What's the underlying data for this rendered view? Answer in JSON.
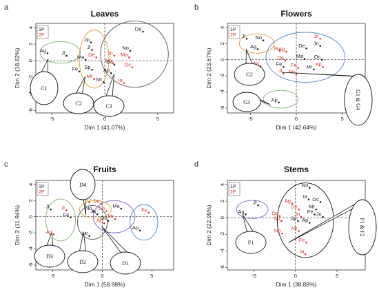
{
  "colors": {
    "group_1P": "#222222",
    "group_2P": "#d23a2a",
    "cluster_green": "#7cb46a",
    "cluster_orange": "#e0a030",
    "cluster_gray": "#555555",
    "cluster_blue": "#4f86c6",
    "cluster_purple": "#8a5cc8",
    "cluster_black": "#111111"
  },
  "chart_data": [
    {
      "letter": "a",
      "type": "scatter",
      "title": "Leaves",
      "xlabel": "Dim 1 (41.07%)",
      "ylabel": "Dim 2 (18.62%)",
      "xlim": [
        -6.5,
        6.5
      ],
      "ylim": [
        -6.3,
        4.5
      ],
      "xticks": [
        -5,
        0,
        5
      ],
      "yticks": [
        -6,
        -4,
        -2,
        0,
        2,
        4
      ],
      "legend": [
        "1P",
        "2P"
      ],
      "legend_position": "top-left",
      "points": [
        {
          "label": "De",
          "x": 3.6,
          "y": 3.5,
          "group": "1P"
        },
        {
          "label": "Ag",
          "x": -5.4,
          "y": 0.9,
          "group": "1P"
        },
        {
          "label": "Jl",
          "x": -3.6,
          "y": 0.6,
          "group": "1P"
        },
        {
          "label": "Jp",
          "x": -1.3,
          "y": 2.2,
          "group": "1P"
        },
        {
          "label": "Jl",
          "x": -1.2,
          "y": 1.3,
          "group": "1P"
        },
        {
          "label": "Jn",
          "x": 0.9,
          "y": 0.6,
          "group": "2P"
        },
        {
          "label": "No",
          "x": 2.4,
          "y": 1.2,
          "group": "1P"
        },
        {
          "label": "De",
          "x": -0.8,
          "y": 0.4,
          "group": "2P"
        },
        {
          "label": "Ma",
          "x": -1.8,
          "y": 0.1,
          "group": "1P"
        },
        {
          "label": "Ma",
          "x": 2.3,
          "y": 0.4,
          "group": "2P"
        },
        {
          "label": "No",
          "x": 0.8,
          "y": -0.3,
          "group": "2P"
        },
        {
          "label": "Oc",
          "x": 0.9,
          "y": -0.5,
          "group": "1P"
        },
        {
          "label": "Oc",
          "x": 2.6,
          "y": -0.8,
          "group": "2P"
        },
        {
          "label": "Fe",
          "x": -2.4,
          "y": -1.3,
          "group": "1P"
        },
        {
          "label": "Sp",
          "x": -1.2,
          "y": -1.1,
          "group": "1P"
        },
        {
          "label": "Ap",
          "x": 0.6,
          "y": -1.5,
          "group": "1P"
        },
        {
          "label": "Mr",
          "x": -1.0,
          "y": -2.2,
          "group": "2P"
        },
        {
          "label": "Mr",
          "x": -0.1,
          "y": -2.6,
          "group": "1P"
        },
        {
          "label": "Ia",
          "x": 1.8,
          "y": -2.7,
          "group": "2P"
        }
      ],
      "clusters": [
        {
          "label": "C1",
          "color": "cluster_green",
          "cx": -4.2,
          "cy": 1.0,
          "rx": 1.9,
          "ry": 1.3
        },
        {
          "label": "C2",
          "color": "cluster_orange",
          "cx": -1.0,
          "cy": 0.2,
          "rx": 1.4,
          "ry": 3.5
        },
        {
          "label": "C3",
          "color": "cluster_gray",
          "cx": 2.8,
          "cy": 0.8,
          "rx": 3.2,
          "ry": 4.0
        }
      ]
    },
    {
      "letter": "b",
      "type": "scatter",
      "title": "Flowers",
      "xlabel": "Dim 1 (42.64%)",
      "ylabel": "Dim 2 (23.67%)",
      "xlim": [
        -7.5,
        7.5
      ],
      "ylim": [
        -6.6,
        4.5
      ],
      "xticks": [
        -5,
        0,
        5
      ],
      "yticks": [
        -6,
        -4,
        -2,
        0,
        2,
        4
      ],
      "legend": [
        "1P",
        "2P"
      ],
      "legend_position": "top-left",
      "points": [
        {
          "label": "Jl",
          "x": -5.4,
          "y": 2.6,
          "group": "1P"
        },
        {
          "label": "No",
          "x": -3.6,
          "y": 2.4,
          "group": "1P"
        },
        {
          "label": "Ag",
          "x": -4.2,
          "y": 1.3,
          "group": "1P"
        },
        {
          "label": "Ja",
          "x": -1.8,
          "y": 1.1,
          "group": "2P"
        },
        {
          "label": "Jn",
          "x": 2.6,
          "y": 2.6,
          "group": "2P"
        },
        {
          "label": "Jn",
          "x": 2.6,
          "y": 1.7,
          "group": "1P"
        },
        {
          "label": "De",
          "x": 1.1,
          "y": 1.4,
          "group": "1P"
        },
        {
          "label": "Ag",
          "x": -1.1,
          "y": 1.0,
          "group": "2P"
        },
        {
          "label": "Ma",
          "x": 0.9,
          "y": 0.1,
          "group": "1P"
        },
        {
          "label": "Oc",
          "x": 2.8,
          "y": 0.0,
          "group": "1P"
        },
        {
          "label": "De",
          "x": -1.2,
          "y": -0.1,
          "group": "2P"
        },
        {
          "label": "Fe",
          "x": -1.4,
          "y": -0.9,
          "group": "1P"
        },
        {
          "label": "Fe",
          "x": 0.2,
          "y": -1.0,
          "group": "2P"
        },
        {
          "label": "Mr",
          "x": 1.9,
          "y": -1.2,
          "group": "1P"
        },
        {
          "label": "Ap",
          "x": 2.9,
          "y": -0.9,
          "group": "2P"
        },
        {
          "label": "Ag",
          "x": -3.9,
          "y": -0.8,
          "group": "2P"
        },
        {
          "label": "Jl",
          "x": -1.4,
          "y": -1.7,
          "group": "2P"
        },
        {
          "label": "No",
          "x": 0.0,
          "y": -1.8,
          "group": "2P"
        },
        {
          "label": "Ap",
          "x": -1.9,
          "y": -5.3,
          "group": "1P"
        }
      ],
      "clusters": [
        {
          "label": "G2",
          "color": "cluster_orange",
          "cx": -4.3,
          "cy": 2.0,
          "rx": 1.9,
          "ry": 1.2
        },
        {
          "label": "G1 & G4",
          "color": "cluster_blue",
          "cx": 1.0,
          "cy": 0.3,
          "rx": 4.3,
          "ry": 3.1
        },
        {
          "label": "G3",
          "color": "cluster_green",
          "cx": -1.7,
          "cy": -4.9,
          "rx": 1.9,
          "ry": 1.1
        }
      ]
    },
    {
      "letter": "c",
      "type": "scatter",
      "title": "Fruits",
      "xlabel": "Dim 1 (58.98%)",
      "ylabel": "Dim 2 (11.94%)",
      "xlim": [
        -6.7,
        7.2
      ],
      "ylim": [
        -6.6,
        4.5
      ],
      "xticks": [
        -5,
        0,
        5
      ],
      "yticks": [
        -6,
        -4,
        -2,
        0,
        2,
        4
      ],
      "legend": [
        "1P",
        "2P"
      ],
      "legend_position": "top-left",
      "points": [
        {
          "label": "Jl",
          "x": -5.2,
          "y": 0.9,
          "group": "1P"
        },
        {
          "label": "Jr",
          "x": -3.6,
          "y": 0.8,
          "group": "2P"
        },
        {
          "label": "Jn",
          "x": -1.3,
          "y": 1.8,
          "group": "2P"
        },
        {
          "label": "De",
          "x": -0.1,
          "y": 1.6,
          "group": "2P"
        },
        {
          "label": "No",
          "x": -0.9,
          "y": 0.7,
          "group": "1P"
        },
        {
          "label": "Ma",
          "x": 1.9,
          "y": 1.0,
          "group": "1P"
        },
        {
          "label": "Sp",
          "x": 0.4,
          "y": 0.7,
          "group": "2P"
        },
        {
          "label": "Ja",
          "x": -0.5,
          "y": 0.3,
          "group": "1P"
        },
        {
          "label": "Fe",
          "x": -3.2,
          "y": -0.1,
          "group": "1P"
        },
        {
          "label": "Fe",
          "x": 4.7,
          "y": 0.5,
          "group": "2P"
        },
        {
          "label": "Oc",
          "x": 0.6,
          "y": -0.5,
          "group": "1P"
        },
        {
          "label": "Mr",
          "x": 1.3,
          "y": -0.3,
          "group": "2P"
        },
        {
          "label": "Ap",
          "x": 0.2,
          "y": -0.8,
          "group": "2P"
        },
        {
          "label": "Ag",
          "x": -4.9,
          "y": -2.2,
          "group": "2P"
        },
        {
          "label": "Ap",
          "x": 3.8,
          "y": -1.7,
          "group": "1P"
        },
        {
          "label": "Mr",
          "x": -1.3,
          "y": -2.4,
          "group": "1P"
        }
      ],
      "clusters": [
        {
          "label": "D3",
          "color": "cluster_green",
          "cx": -4.2,
          "cy": -0.4,
          "rx": 1.5,
          "ry": 2.6
        },
        {
          "label": "D4",
          "color": "cluster_orange",
          "cx": -0.7,
          "cy": 0.9,
          "rx": 1.6,
          "ry": 1.1
        },
        {
          "label": "D2",
          "color": "cluster_gray",
          "cx": -1.0,
          "cy": -0.7,
          "rx": 1.5,
          "ry": 2.1
        },
        {
          "label": "D1",
          "color": "cluster_purple",
          "cx": 1.2,
          "cy": 0.0,
          "rx": 2.1,
          "ry": 2.0
        },
        {
          "label": "",
          "color": "cluster_blue",
          "cx": 4.2,
          "cy": -0.7,
          "rx": 1.4,
          "ry": 2.2
        }
      ]
    },
    {
      "letter": "d",
      "type": "scatter",
      "title": "Stems",
      "xlabel": "Dim 1 (38.88%)",
      "ylabel": "Dim 2 (22.95%)",
      "xlim": [
        -8.2,
        8.4
      ],
      "ylim": [
        -6.3,
        4.5
      ],
      "xticks": [
        -5,
        0,
        5
      ],
      "yticks": [
        -6,
        -4,
        -2,
        0,
        2,
        4
      ],
      "legend": [
        "1P",
        "2P"
      ],
      "legend_position": "top-left",
      "points": [
        {
          "label": "No",
          "x": 1.7,
          "y": 3.6,
          "group": "1P"
        },
        {
          "label": "Ia",
          "x": 1.6,
          "y": 2.2,
          "group": "1P"
        },
        {
          "label": "Oc",
          "x": 3.0,
          "y": 1.9,
          "group": "1P"
        },
        {
          "label": "Jl",
          "x": -4.5,
          "y": 1.5,
          "group": "1P"
        },
        {
          "label": "Ag",
          "x": -0.4,
          "y": 1.7,
          "group": "2P"
        },
        {
          "label": "Mr",
          "x": 2.5,
          "y": 1.0,
          "group": "1P"
        },
        {
          "label": "De",
          "x": 0.4,
          "y": 1.0,
          "group": "2P"
        },
        {
          "label": "Ag",
          "x": -6.0,
          "y": 0.4,
          "group": "1P"
        },
        {
          "label": "Fe",
          "x": 2.3,
          "y": 0.4,
          "group": "1P"
        },
        {
          "label": "Jn",
          "x": 3.3,
          "y": 0.1,
          "group": "1P"
        },
        {
          "label": "Oc",
          "x": -1.9,
          "y": 0.2,
          "group": "2P"
        },
        {
          "label": "Sp",
          "x": -1.7,
          "y": -0.4,
          "group": "2P"
        },
        {
          "label": "Jn",
          "x": 0.7,
          "y": 0.1,
          "group": "2P"
        },
        {
          "label": "Sp",
          "x": 0.3,
          "y": -0.4,
          "group": "1P"
        },
        {
          "label": "Ap",
          "x": 1.7,
          "y": -0.6,
          "group": "1P"
        },
        {
          "label": "No",
          "x": -1.6,
          "y": -1.9,
          "group": "2P"
        },
        {
          "label": "Mr",
          "x": 0.4,
          "y": -1.6,
          "group": "2P"
        },
        {
          "label": "Fe",
          "x": 1.3,
          "y": -3.0,
          "group": "2P"
        },
        {
          "label": "Ia",
          "x": 1.2,
          "y": -4.4,
          "group": "2P"
        }
      ],
      "clusters": [
        {
          "label": "F1",
          "color": "cluster_purple",
          "cx": -5.2,
          "cy": 1.0,
          "rx": 1.9,
          "ry": 1.1
        },
        {
          "label": "F1 & F2",
          "color": "cluster_black",
          "cx": 1.2,
          "cy": -0.3,
          "rx": 3.4,
          "ry": 4.5
        }
      ]
    }
  ]
}
